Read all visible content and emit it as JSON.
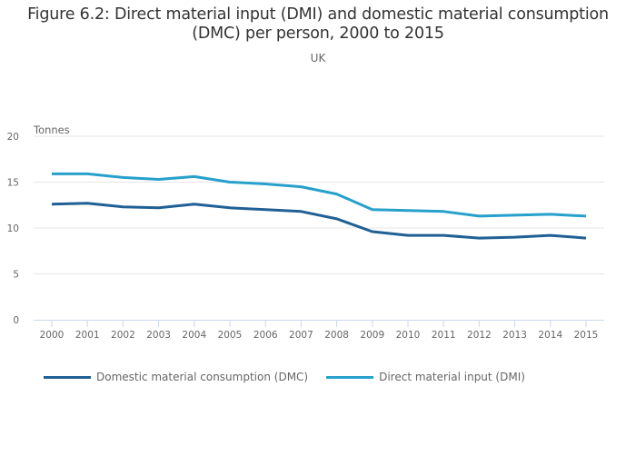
{
  "chart_data": {
    "type": "line",
    "title": "Figure 6.2: Direct material input (DMI) and domestic material consumption (DMC) per person, 2000 to 2015",
    "title_lines": [
      "Figure 6.2: Direct material input (DMI) and domestic material consumption",
      "(DMC) per person, 2000 to 2015"
    ],
    "subtitle": "UK",
    "xlabel": "",
    "ylabel": "Tonnes",
    "x": [
      "2000",
      "2001",
      "2002",
      "2003",
      "2004",
      "2005",
      "2006",
      "2007",
      "2008",
      "2009",
      "2010",
      "2011",
      "2012",
      "2013",
      "2014",
      "2015"
    ],
    "ylim": [
      0,
      20
    ],
    "yticks": [
      "0",
      "5",
      "10",
      "15",
      "20"
    ],
    "grid": true,
    "legend_position": "bottom-left",
    "series": [
      {
        "name": "Domestic material consumption (DMC)",
        "color": "#206095",
        "values": [
          12.6,
          12.7,
          12.3,
          12.2,
          12.6,
          12.2,
          12.0,
          11.8,
          11.0,
          9.6,
          9.2,
          9.2,
          8.9,
          9.0,
          9.2,
          8.9
        ]
      },
      {
        "name": "Direct material input (DMI)",
        "color": "#27a0cc",
        "values": [
          15.9,
          15.9,
          15.5,
          15.3,
          15.6,
          15.0,
          14.8,
          14.5,
          13.7,
          12.0,
          11.9,
          11.8,
          11.3,
          11.4,
          11.5,
          11.3
        ]
      }
    ]
  }
}
